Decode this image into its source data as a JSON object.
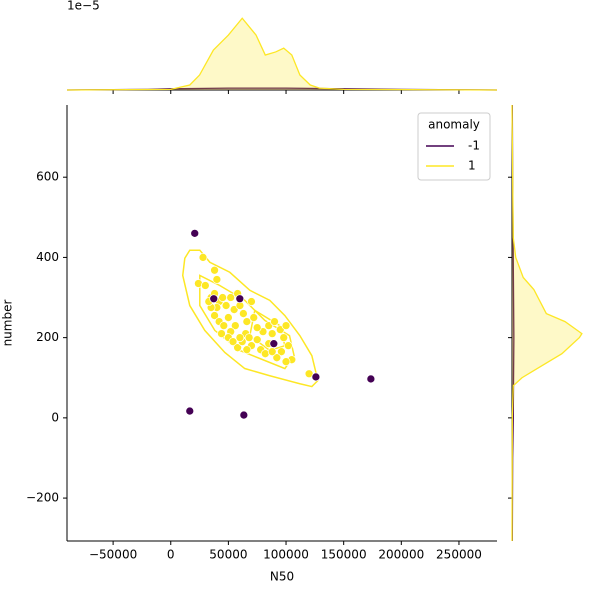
{
  "chart_data": [
    {
      "type": "scatter",
      "x_label": "N50",
      "y_label": "number",
      "xlim": [
        -90000,
        283000
      ],
      "ylim": [
        -307,
        780
      ],
      "xticks": [
        {
          "value": -50000,
          "label": "−50000"
        },
        0,
        50000,
        100000,
        150000,
        200000,
        250000
      ],
      "yticks": [
        {
          "value": -200,
          "label": "−200"
        },
        0,
        200,
        400,
        600
      ],
      "legend_title": "anomaly",
      "legend_position": "upper right",
      "series": [
        {
          "name": "-1",
          "color": "#440154",
          "x": [
            20800,
            37300,
            59900,
            89400,
            125900,
            173600,
            16500,
            63400
          ],
          "y": [
            460,
            297,
            297,
            185,
            102,
            97,
            17,
            7
          ]
        },
        {
          "name": "1",
          "color": "#fde725",
          "x": [
            28000,
            24000,
            30000,
            35000,
            38000,
            40000,
            38000,
            42000,
            45000,
            48000,
            40000,
            38000,
            42000,
            46000,
            50000,
            52000,
            55000,
            58000,
            60000,
            63000,
            66000,
            70000,
            72000,
            56000,
            52000,
            50000,
            54000,
            58000,
            62000,
            65000,
            68000,
            70000,
            75000,
            78000,
            82000,
            85000,
            88000,
            90000,
            95000,
            100000,
            98000,
            102000,
            96000,
            105000,
            100000,
            92000,
            88000,
            80000,
            75000,
            66000,
            120000,
            60000,
            44000,
            35000,
            33000,
            85000
          ],
          "y": [
            400,
            335,
            330,
            300,
            368,
            345,
            310,
            290,
            300,
            280,
            275,
            255,
            240,
            230,
            250,
            300,
            270,
            310,
            280,
            260,
            240,
            290,
            250,
            230,
            215,
            200,
            190,
            175,
            190,
            210,
            200,
            180,
            195,
            170,
            160,
            230,
            210,
            240,
            220,
            230,
            200,
            180,
            165,
            145,
            140,
            150,
            165,
            215,
            225,
            170,
            110,
            200,
            210,
            275,
            290,
            185
          ]
        }
      ],
      "contours": [
        {
          "x": [
            16500,
            25200,
            33900,
            51200,
            68600,
            85900,
            99000,
            112000,
            122400,
            127600,
            122400,
            112000,
            85900,
            64200,
            46900,
            29500,
            16500,
            10400,
            12200
          ],
          "y": [
            418,
            418,
            388,
            363,
            318,
            293,
            255,
            205,
            155,
            93,
            78,
            85,
            105,
            123,
            163,
            218,
            280,
            355,
            398
          ]
        },
        {
          "x": [
            25200,
            42500,
            64200,
            81600,
            103000,
            107000,
            99000,
            81600,
            59900,
            38200,
            25200
          ],
          "y": [
            355,
            330,
            293,
            243,
            205,
            155,
            123,
            143,
            168,
            218,
            280
          ]
        },
        {
          "x": [
            72900,
            94600,
            99000,
            85900,
            68600
          ],
          "y": [
            268,
            230,
            180,
            168,
            205
          ]
        }
      ]
    },
    {
      "type": "kde-top",
      "offset_label": "1e−5",
      "xlim": [
        -90000,
        283000
      ],
      "ylim": [
        0,
        1.25
      ],
      "series": [
        {
          "color": "#440154",
          "x": [
            -90000,
            -20000,
            0,
            50000,
            100000,
            150000,
            200000,
            283000
          ],
          "density": [
            0,
            0.01,
            0.02,
            0.03,
            0.03,
            0.02,
            0.01,
            0
          ]
        },
        {
          "color": "#fde725",
          "x": [
            -90000,
            0,
            16500,
            25000,
            37000,
            50000,
            62000,
            74000,
            82000,
            91000,
            98000,
            105000,
            112000,
            121000,
            129000,
            150000,
            283000
          ],
          "density": [
            0,
            0.01,
            0.08,
            0.24,
            0.64,
            0.88,
            1.15,
            0.88,
            0.56,
            0.61,
            0.67,
            0.56,
            0.24,
            0.08,
            0.03,
            0.01,
            0
          ]
        }
      ]
    },
    {
      "type": "kde-right",
      "ylim": [
        -307,
        780
      ],
      "xlim": [
        0,
        1.25
      ],
      "series": [
        {
          "color": "#440154",
          "y": [
            -307,
            -100,
            0,
            200,
            400,
            600,
            780
          ],
          "density": [
            0.005,
            0.01,
            0.02,
            0.03,
            0.02,
            0.01,
            0.005
          ]
        },
        {
          "color": "#fde725",
          "y": [
            -307,
            0,
            80,
            100,
            130,
            160,
            200,
            210,
            240,
            260,
            290,
            320,
            350,
            400,
            450,
            780
          ],
          "density": [
            0,
            0.005,
            0.02,
            0.16,
            0.48,
            0.8,
            1.08,
            1.12,
            0.85,
            0.55,
            0.45,
            0.35,
            0.18,
            0.06,
            0.02,
            0
          ]
        }
      ]
    }
  ]
}
